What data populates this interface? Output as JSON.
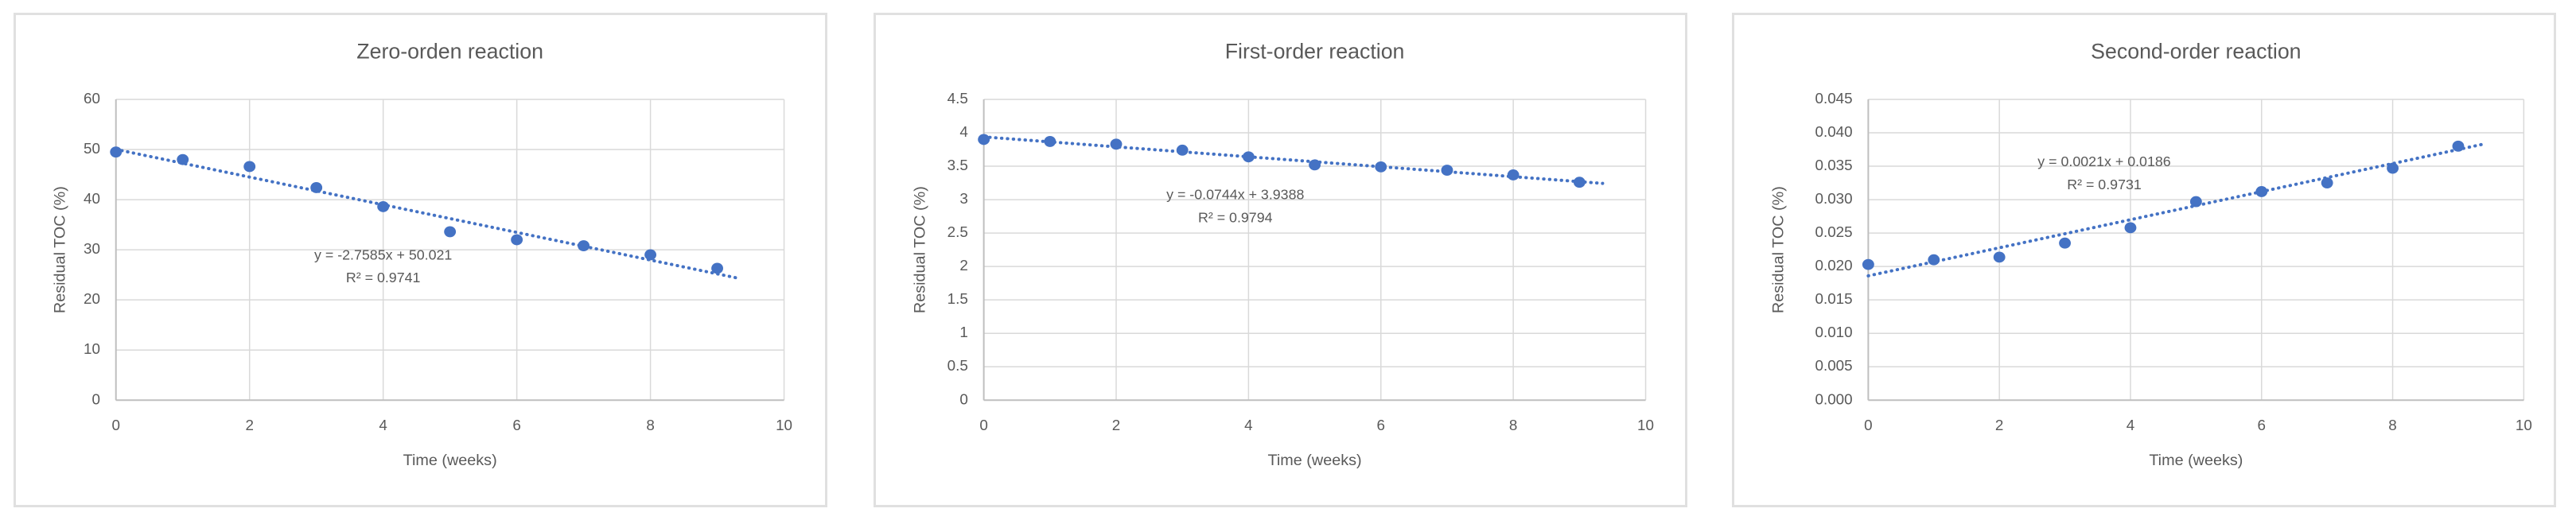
{
  "page": {
    "background_color": "#ffffff",
    "panel_border_color": "#e0e0e0",
    "accent_color": "#4472C4",
    "text_color": "#595959",
    "gridline_color": "#d9d9d9",
    "axis_line_color": "#bfbfbf"
  },
  "chart_data": [
    {
      "type": "scatter",
      "title": "Zero-orden reaction",
      "xlabel": "Time (weeks)",
      "ylabel": "Residual TOC (%)",
      "x": [
        0,
        1,
        2,
        3,
        4,
        5,
        6,
        7,
        8,
        9
      ],
      "y": [
        49.5,
        48.0,
        46.6,
        42.4,
        38.6,
        33.6,
        32.0,
        30.8,
        29.0,
        26.3
      ],
      "xlim": [
        0,
        10
      ],
      "xtick_step": 2,
      "ylim": [
        0,
        60
      ],
      "ytick_step": 10,
      "ytick_format": "integer",
      "grid": true,
      "legend": "none",
      "marker_color": "#4472C4",
      "trendline": {
        "style": "dotted",
        "color": "#4472C4",
        "slope": -2.7585,
        "intercept": 50.021,
        "x_start": 0,
        "x_end": 9.35,
        "equation_label": "y = -2.7585x + 50.021",
        "r2_label": "R² = 0.9741",
        "label_fx": 0.4,
        "label_fy": 0.52
      }
    },
    {
      "type": "scatter",
      "title": "First-order reaction",
      "xlabel": "Time (weeks)",
      "ylabel": "Residual TOC (%)",
      "x": [
        0,
        1,
        2,
        3,
        4,
        5,
        6,
        7,
        8,
        9
      ],
      "y": [
        3.9,
        3.87,
        3.83,
        3.74,
        3.64,
        3.52,
        3.49,
        3.44,
        3.37,
        3.26
      ],
      "xlim": [
        0,
        10
      ],
      "xtick_step": 2,
      "ylim": [
        0,
        4.5
      ],
      "ytick_step": 0.5,
      "ytick_format": "trim",
      "grid": true,
      "legend": "none",
      "marker_color": "#4472C4",
      "trendline": {
        "style": "dotted",
        "color": "#4472C4",
        "slope": -0.0744,
        "intercept": 3.9388,
        "x_start": 0,
        "x_end": 9.35,
        "equation_label": "y = -0.0744x + 3.9388",
        "r2_label": "R² = 0.9794",
        "label_fx": 0.38,
        "label_fy": 0.32
      }
    },
    {
      "type": "scatter",
      "title": "Second-order reaction",
      "xlabel": "Time (weeks)",
      "ylabel": "Residual TOC (%)",
      "x": [
        0,
        1,
        2,
        3,
        4,
        5,
        6,
        7,
        8,
        9
      ],
      "y": [
        0.0203,
        0.021,
        0.0214,
        0.0235,
        0.0258,
        0.0297,
        0.0312,
        0.0325,
        0.0347,
        0.038
      ],
      "xlim": [
        0,
        10
      ],
      "xtick_step": 2,
      "ylim": [
        0,
        0.045
      ],
      "ytick_step": 0.005,
      "ytick_format": "fixed3",
      "grid": true,
      "legend": "none",
      "marker_color": "#4472C4",
      "trendline": {
        "style": "dotted",
        "color": "#4472C4",
        "slope": 0.0021,
        "intercept": 0.0186,
        "x_start": 0,
        "x_end": 9.4,
        "equation_label": "y = 0.0021x + 0.0186",
        "r2_label": "R² = 0.9731",
        "label_fx": 0.36,
        "label_fy": 0.21
      }
    }
  ]
}
